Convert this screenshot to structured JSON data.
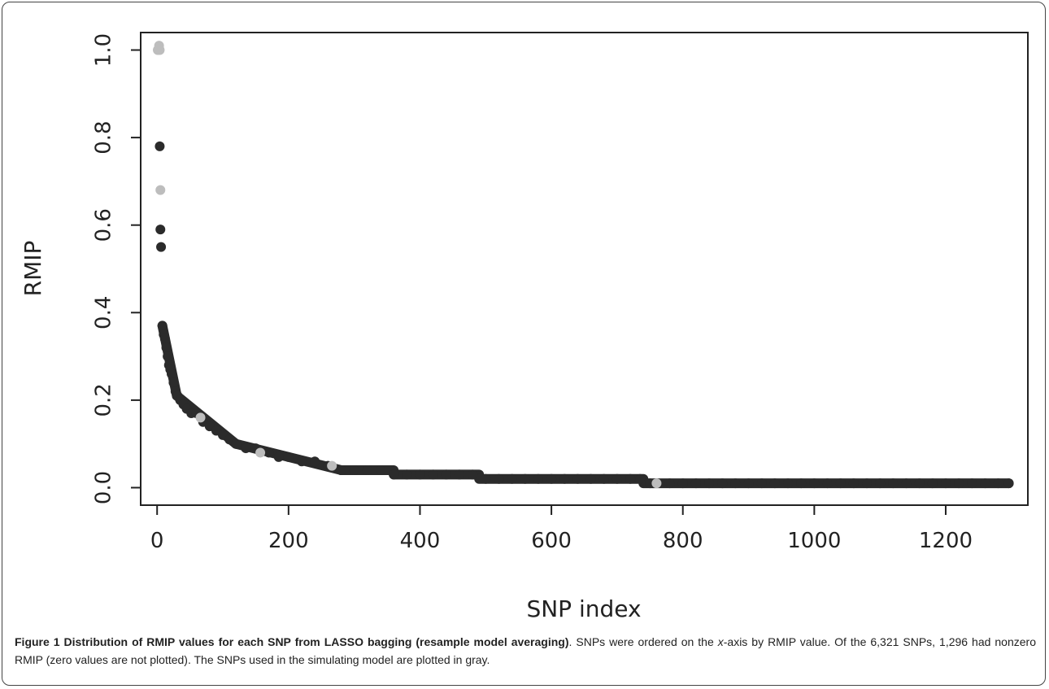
{
  "chart_data": {
    "type": "scatter",
    "xlabel": "SNP index",
    "ylabel": "RMIP",
    "xlim": [
      -25,
      1325
    ],
    "ylim": [
      -0.04,
      1.04
    ],
    "x_ticks": [
      0,
      200,
      400,
      600,
      800,
      1000,
      1200
    ],
    "y_ticks": [
      0.0,
      0.2,
      0.4,
      0.6,
      0.8,
      1.0
    ],
    "y_tick_labels": [
      "0.0",
      "0.2",
      "0.4",
      "0.6",
      "0.8",
      "1.0"
    ],
    "grid": false,
    "colors": {
      "background_snp": "#2b2b2b",
      "simulated_snp": "#bdbdbd"
    },
    "series": [
      {
        "color": "#2b2b2b",
        "points": [
          [
            4,
            0.78
          ],
          [
            5,
            0.59
          ],
          [
            6,
            0.55
          ],
          [
            8,
            0.37
          ],
          [
            10,
            0.35
          ],
          [
            12,
            0.34
          ],
          [
            14,
            0.32
          ],
          [
            16,
            0.3
          ],
          [
            18,
            0.28
          ],
          [
            20,
            0.27
          ],
          [
            22,
            0.26
          ],
          [
            25,
            0.24
          ],
          [
            28,
            0.22
          ],
          [
            31,
            0.21
          ],
          [
            35,
            0.2
          ],
          [
            40,
            0.19
          ],
          [
            45,
            0.18
          ],
          [
            52,
            0.17
          ],
          [
            60,
            0.17
          ],
          [
            70,
            0.15
          ],
          [
            80,
            0.14
          ],
          [
            90,
            0.13
          ],
          [
            100,
            0.12
          ],
          [
            110,
            0.11
          ],
          [
            120,
            0.1
          ],
          [
            135,
            0.09
          ],
          [
            150,
            0.09
          ],
          [
            170,
            0.08
          ],
          [
            185,
            0.07
          ],
          [
            200,
            0.07
          ],
          [
            220,
            0.06
          ],
          [
            240,
            0.06
          ],
          [
            260,
            0.05
          ],
          [
            280,
            0.04
          ],
          [
            300,
            0.04
          ],
          [
            320,
            0.04
          ],
          [
            340,
            0.04
          ],
          [
            360,
            0.03
          ],
          [
            380,
            0.03
          ],
          [
            400,
            0.03
          ],
          [
            420,
            0.03
          ],
          [
            440,
            0.03
          ],
          [
            460,
            0.03
          ],
          [
            480,
            0.03
          ],
          [
            500,
            0.02
          ],
          [
            520,
            0.02
          ],
          [
            540,
            0.02
          ],
          [
            560,
            0.02
          ],
          [
            580,
            0.02
          ],
          [
            600,
            0.02
          ],
          [
            620,
            0.02
          ],
          [
            640,
            0.02
          ],
          [
            660,
            0.02
          ],
          [
            680,
            0.02
          ],
          [
            700,
            0.02
          ],
          [
            720,
            0.02
          ],
          [
            735,
            0.02
          ],
          [
            750,
            0.01
          ],
          [
            780,
            0.01
          ],
          [
            800,
            0.01
          ],
          [
            820,
            0.01
          ],
          [
            840,
            0.01
          ],
          [
            860,
            0.01
          ],
          [
            880,
            0.01
          ],
          [
            900,
            0.01
          ],
          [
            920,
            0.01
          ],
          [
            940,
            0.01
          ],
          [
            960,
            0.01
          ],
          [
            980,
            0.01
          ],
          [
            1000,
            0.01
          ],
          [
            1020,
            0.01
          ],
          [
            1040,
            0.01
          ],
          [
            1060,
            0.01
          ],
          [
            1080,
            0.01
          ],
          [
            1100,
            0.01
          ],
          [
            1120,
            0.01
          ],
          [
            1140,
            0.01
          ],
          [
            1160,
            0.01
          ],
          [
            1180,
            0.01
          ],
          [
            1200,
            0.01
          ],
          [
            1220,
            0.01
          ],
          [
            1240,
            0.01
          ],
          [
            1260,
            0.01
          ],
          [
            1280,
            0.01
          ],
          [
            1296,
            0.01
          ]
        ],
        "segments": [
          {
            "x": [
              8,
              30
            ],
            "y0": 0.37,
            "y1": 0.21
          },
          {
            "x": [
              30,
              120
            ],
            "y0": 0.21,
            "y1": 0.1
          },
          {
            "x": [
              120,
              280
            ],
            "y0": 0.1,
            "y1": 0.04
          },
          {
            "x": [
              280,
              360
            ],
            "y": 0.04
          },
          {
            "x": [
              360,
              490
            ],
            "y": 0.03
          },
          {
            "x": [
              490,
              740
            ],
            "y": 0.02
          },
          {
            "x": [
              740,
              1296
            ],
            "y": 0.01
          }
        ]
      },
      {
        "color": "#bdbdbd",
        "points": [
          [
            1,
            1.0
          ],
          [
            2,
            1.0
          ],
          [
            3,
            1.01
          ],
          [
            4,
            1.0
          ],
          [
            5,
            0.68
          ],
          [
            66,
            0.16
          ],
          [
            157,
            0.08
          ],
          [
            266,
            0.05
          ],
          [
            760,
            0.01
          ]
        ]
      }
    ]
  },
  "caption": {
    "label": "Figure 1 Distribution of RMIP values for each SNP from LASSO bagging (resample model averaging)",
    "text_before_x": ". SNPs were ordered on the ",
    "x_italic": "x",
    "text_after_x": "-axis by RMIP value. Of the 6,321 SNPs, 1,296 had nonzero RMIP (zero values are not plotted). The SNPs used in the simulating model are plotted in gray."
  }
}
